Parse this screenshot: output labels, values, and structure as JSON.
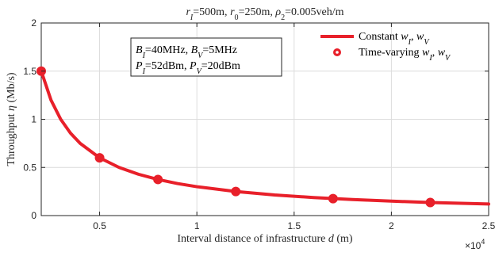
{
  "chart_data": {
    "type": "line",
    "title": "r_I=500m, r_0=250m, ρ_2=0.005veh/m",
    "title_parts": [
      {
        "text": "r",
        "italic": true
      },
      {
        "text": "I",
        "italic": true,
        "sub": true
      },
      {
        "text": "=500m, ",
        "italic": false
      },
      {
        "text": "r",
        "italic": true
      },
      {
        "text": "0",
        "italic": false,
        "sub": true
      },
      {
        "text": "=250m, ",
        "italic": false
      },
      {
        "text": "ρ",
        "italic": true
      },
      {
        "text": "2",
        "italic": false,
        "sub": true
      },
      {
        "text": "=0.005veh/m",
        "italic": false
      }
    ],
    "xlabel": "Interval distance of infrastructure d (m)",
    "xlabel_parts": [
      {
        "text": "Interval distance of infrastructure ",
        "italic": false
      },
      {
        "text": "d",
        "italic": true
      },
      {
        "text": " (m)",
        "italic": false
      }
    ],
    "ylabel": "Throughput η (Mb/s)",
    "ylabel_parts": [
      {
        "text": "Throughput ",
        "italic": false
      },
      {
        "text": "η",
        "italic": true
      },
      {
        "text": " (Mb/s)",
        "italic": false
      }
    ],
    "x_multiplier": "×10^4",
    "xlim": [
      2000,
      25000
    ],
    "ylim": [
      0,
      2
    ],
    "x_ticks": [
      5000,
      10000,
      15000,
      20000,
      25000
    ],
    "x_tick_labels": [
      "0.5",
      "1",
      "1.5",
      "2",
      "2.5"
    ],
    "y_ticks": [
      0,
      0.5,
      1,
      1.5,
      2
    ],
    "y_tick_labels": [
      "0",
      "0.5",
      "1",
      "1.5",
      "2"
    ],
    "grid": true,
    "legend_position": "top-right",
    "series": [
      {
        "name": "Constant w_I, w_V",
        "name_parts": [
          {
            "text": "Constant ",
            "italic": false
          },
          {
            "text": "w",
            "italic": true
          },
          {
            "text": "I",
            "italic": true,
            "sub": true
          },
          {
            "text": ", ",
            "italic": false
          },
          {
            "text": "w",
            "italic": true
          },
          {
            "text": "V",
            "italic": true,
            "sub": true
          }
        ],
        "style": "line",
        "color": "#e8202a",
        "x": [
          2000,
          2500,
          3000,
          3500,
          4000,
          5000,
          6000,
          7000,
          8000,
          9000,
          10000,
          12000,
          14000,
          16000,
          18000,
          20000,
          22000,
          24000,
          25000
        ],
        "y": [
          1.5,
          1.2,
          1.0,
          0.857,
          0.75,
          0.6,
          0.5,
          0.429,
          0.375,
          0.333,
          0.3,
          0.25,
          0.214,
          0.1875,
          0.167,
          0.15,
          0.136,
          0.125,
          0.12
        ]
      },
      {
        "name": "Time-varying w_I, w_V",
        "name_parts": [
          {
            "text": "Time-varying ",
            "italic": false
          },
          {
            "text": "w",
            "italic": true
          },
          {
            "text": "I",
            "italic": true,
            "sub": true
          },
          {
            "text": ", ",
            "italic": false
          },
          {
            "text": "w",
            "italic": true
          },
          {
            "text": "V",
            "italic": true,
            "sub": true
          }
        ],
        "style": "markers",
        "color": "#e8202a",
        "x": [
          2000,
          5000,
          8000,
          12000,
          17000,
          22000
        ],
        "y": [
          1.5,
          0.6,
          0.375,
          0.25,
          0.176,
          0.136
        ]
      }
    ],
    "annotation_lines": [
      [
        {
          "text": "B",
          "italic": true
        },
        {
          "text": "I",
          "italic": true,
          "sub": true
        },
        {
          "text": "=40MHz, ",
          "italic": false
        },
        {
          "text": "B",
          "italic": true
        },
        {
          "text": "V",
          "italic": true,
          "sub": true
        },
        {
          "text": "=5MHz",
          "italic": false
        }
      ],
      [
        {
          "text": "P",
          "italic": true
        },
        {
          "text": "I",
          "italic": true,
          "sub": true
        },
        {
          "text": "=52dBm, ",
          "italic": false
        },
        {
          "text": "P",
          "italic": true
        },
        {
          "text": "V",
          "italic": true,
          "sub": true
        },
        {
          "text": "=20dBm",
          "italic": false
        }
      ]
    ]
  }
}
